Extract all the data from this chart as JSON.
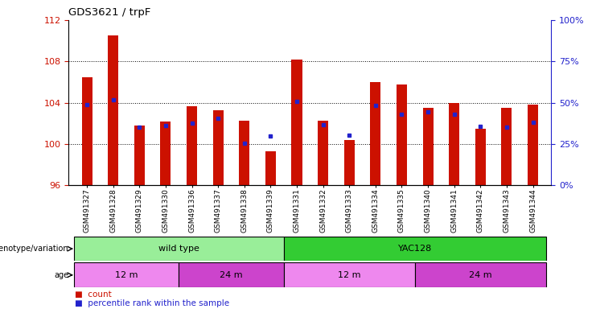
{
  "title": "GDS3621 / trpF",
  "samples": [
    "GSM491327",
    "GSM491328",
    "GSM491329",
    "GSM491330",
    "GSM491336",
    "GSM491337",
    "GSM491338",
    "GSM491339",
    "GSM491331",
    "GSM491332",
    "GSM491333",
    "GSM491334",
    "GSM491335",
    "GSM491340",
    "GSM491341",
    "GSM491342",
    "GSM491343",
    "GSM491344"
  ],
  "count_values": [
    106.5,
    110.5,
    101.8,
    102.2,
    103.7,
    103.3,
    102.3,
    99.3,
    108.2,
    102.3,
    100.4,
    106.0,
    105.8,
    103.5,
    104.0,
    101.5,
    103.5,
    103.8
  ],
  "percentile_values": [
    49.0,
    52.0,
    35.0,
    36.0,
    37.5,
    40.5,
    25.5,
    30.0,
    51.0,
    36.5,
    30.5,
    48.5,
    43.0,
    44.5,
    43.0,
    35.5,
    35.0,
    38.0
  ],
  "y_min": 96,
  "y_max": 112,
  "y_ticks_left": [
    96,
    100,
    104,
    108,
    112
  ],
  "y_ticks_right_pct": [
    0,
    25,
    50,
    75,
    100
  ],
  "bar_color": "#cc1100",
  "dot_color": "#2222cc",
  "genotype_groups": [
    {
      "label": "wild type",
      "start": 0,
      "end": 8,
      "color": "#99ee99"
    },
    {
      "label": "YAC128",
      "start": 8,
      "end": 18,
      "color": "#33cc33"
    }
  ],
  "age_groups": [
    {
      "label": "12 m",
      "start": 0,
      "end": 4,
      "color": "#ee88ee"
    },
    {
      "label": "24 m",
      "start": 4,
      "end": 8,
      "color": "#cc44cc"
    },
    {
      "label": "12 m",
      "start": 8,
      "end": 13,
      "color": "#ee88ee"
    },
    {
      "label": "24 m",
      "start": 13,
      "end": 18,
      "color": "#cc44cc"
    }
  ],
  "right_axis_color": "#2222cc",
  "left_axis_color": "#cc1100",
  "grid_color": "black",
  "bar_width": 0.4
}
